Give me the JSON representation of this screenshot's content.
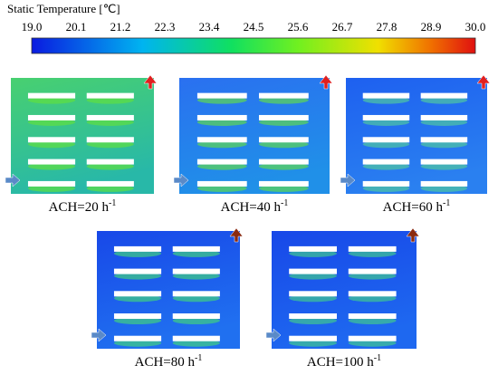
{
  "colorbar": {
    "title": "Static Temperature [℃]",
    "ticks": [
      "19.0",
      "20.1",
      "21.2",
      "22.3",
      "23.4",
      "24.5",
      "25.6",
      "26.7",
      "27.8",
      "28.9",
      "30.0"
    ]
  },
  "panels": [
    {
      "label": "ACH=20 h",
      "sup": "-1"
    },
    {
      "label": "ACH=40 h",
      "sup": "-1"
    },
    {
      "label": "ACH=60 h",
      "sup": "-1"
    },
    {
      "label": "ACH=80 h",
      "sup": "-1"
    },
    {
      "label": "ACH=100 h",
      "sup": "-1"
    }
  ]
}
